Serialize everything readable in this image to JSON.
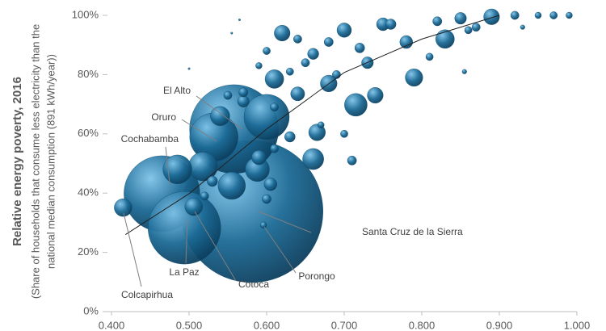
{
  "chart_data": {
    "type": "bubble",
    "y_label": "Relative energy poverty, 2016",
    "y_label_note": [
      "(Share of households that consume less electricity than the",
      "national median consumption (891 kWh/year))"
    ],
    "xlim": [
      0.4,
      1.0
    ],
    "xticks": [
      {
        "value": 0.4,
        "label": "0.400"
      },
      {
        "value": 0.5,
        "label": "0.500"
      },
      {
        "value": 0.6,
        "label": "0.600"
      },
      {
        "value": 0.7,
        "label": "0.700"
      },
      {
        "value": 0.8,
        "label": "0.800"
      },
      {
        "value": 0.9,
        "label": "0.900"
      },
      {
        "value": 1.0,
        "label": "1.000"
      }
    ],
    "ylim": [
      0,
      100
    ],
    "yticks": [
      {
        "value": 0,
        "label": "0%"
      },
      {
        "value": 20,
        "label": "20%"
      },
      {
        "value": 40,
        "label": "40%"
      },
      {
        "value": 60,
        "label": "60%"
      },
      {
        "value": 80,
        "label": "80%"
      },
      {
        "value": 100,
        "label": "100%"
      }
    ],
    "series": [
      {
        "color": "#1b6a96",
        "x": [
          0.581,
          0.558,
          0.465,
          0.494,
          0.532,
          0.6,
          0.518,
          0.485,
          0.555,
          0.588,
          0.715,
          0.66,
          0.54,
          0.665,
          0.79,
          0.74,
          0.61,
          0.68,
          0.83,
          0.89,
          0.62,
          0.59,
          0.605,
          0.64,
          0.7,
          0.75,
          0.78,
          0.85,
          0.73,
          0.66,
          0.57,
          0.63,
          0.71,
          0.76,
          0.92,
          0.97,
          0.99,
          0.95,
          0.87,
          0.82,
          0.72,
          0.68,
          0.65,
          0.6,
          0.64,
          0.55,
          0.57,
          0.69,
          0.7,
          0.67,
          0.81,
          0.86,
          0.855,
          0.93,
          0.5,
          0.565,
          0.555,
          0.59,
          0.61,
          0.63,
          0.415,
          0.506,
          0.596,
          0.53,
          0.52,
          0.6,
          0.61
        ],
        "values": [
          33.8,
          61.6,
          39.8,
          28.3,
          58.9,
          65.7,
          49,
          48,
          42.5,
          48,
          69.8,
          51.5,
          66,
          60.5,
          79,
          73,
          78.5,
          77,
          92,
          99.5,
          94,
          52,
          43,
          73.5,
          95,
          97,
          91,
          99,
          84,
          87,
          71,
          59,
          51,
          97,
          100,
          100,
          100,
          100,
          96,
          98,
          89,
          91,
          84,
          88,
          92,
          73,
          74,
          80,
          60,
          63,
          86,
          95,
          81,
          96,
          82,
          98.5,
          94,
          83,
          69,
          81,
          35.1,
          35.4,
          29.2,
          44,
          39,
          38,
          55
        ],
        "sizes": [
          1450000,
          566000,
          413000,
          379000,
          168000,
          147000,
          60000,
          60000,
          54000,
          42000,
          37000,
          32000,
          27000,
          20000,
          22000,
          18000,
          25000,
          20000,
          25000,
          18000,
          18000,
          15000,
          12000,
          14000,
          15000,
          12000,
          12000,
          10000,
          10000,
          9000,
          10000,
          8000,
          6000,
          8000,
          5000,
          4000,
          3000,
          3000,
          5000,
          6000,
          7000,
          6000,
          5000,
          4000,
          5000,
          5000,
          6000,
          5000,
          4000,
          3000,
          4000,
          4000,
          1500,
          1500,
          300,
          300,
          300,
          3000,
          5000,
          4000,
          22600,
          22600,
          3000,
          8000,
          5000,
          6000,
          5000
        ],
        "labels": [
          "Santa Cruz de la Sierra",
          "El Alto",
          "Cochabamba",
          "La Paz",
          "Oruro",
          null,
          null,
          null,
          null,
          null,
          null,
          null,
          null,
          null,
          null,
          null,
          null,
          null,
          null,
          null,
          null,
          null,
          null,
          null,
          null,
          null,
          null,
          null,
          null,
          null,
          null,
          null,
          null,
          null,
          null,
          null,
          null,
          null,
          null,
          null,
          null,
          null,
          null,
          null,
          null,
          null,
          null,
          null,
          null,
          null,
          null,
          null,
          null,
          null,
          null,
          null,
          null,
          null,
          null,
          null,
          "Colcapirhua",
          "Cotoca",
          "Porongo",
          null,
          null,
          null,
          null
        ]
      }
    ],
    "trendline": {
      "color": "#222222",
      "x": [
        0.418,
        0.5,
        0.6,
        0.7,
        0.8,
        0.9
      ],
      "y": [
        26,
        39.8,
        61.6,
        80.7,
        92,
        100
      ]
    }
  }
}
